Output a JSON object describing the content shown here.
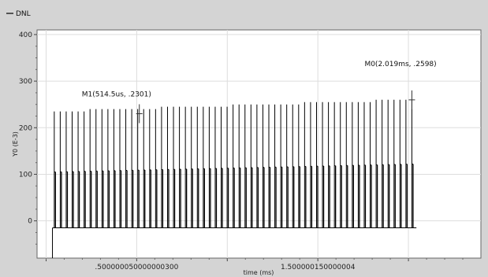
{
  "chart_data": {
    "type": "line",
    "title": "",
    "xlabel": "time (ms)",
    "ylabel": "Y0 (E-3)",
    "xlim": [
      -0.05,
      2.4
    ],
    "ylim": [
      -80,
      410
    ],
    "grid": true,
    "legend": {
      "placement": "top-left",
      "entries": [
        "DNL"
      ]
    },
    "x_tick_values": [
      0.0,
      0.5,
      1.0,
      1.5,
      2.0
    ],
    "x_tick_labels": [
      "",
      ".500000050000000300",
      "",
      "1.500000150000004",
      ""
    ],
    "y_tick_values": [
      0,
      100,
      200,
      300,
      400
    ],
    "y_tick_labels": [
      "0",
      "100",
      "200",
      "300",
      "400"
    ],
    "baseline": -15,
    "series": [
      {
        "name": "DNL",
        "color": "#000000",
        "pulse_start": 0.045,
        "pulse_end": 2.019,
        "pulse_count": 61,
        "low_level": -15,
        "mid_level_start": 105,
        "mid_level_end": 122,
        "peak_level_start": 235,
        "peak_level_end": 260
      }
    ],
    "markers": [
      {
        "name": "M1",
        "x": 0.5145,
        "y": 230.1,
        "label": "M1(514.5us, .2301)"
      },
      {
        "name": "M0",
        "x": 2.019,
        "y": 259.8,
        "label": "M0(2.019ms, .2598)"
      }
    ]
  }
}
